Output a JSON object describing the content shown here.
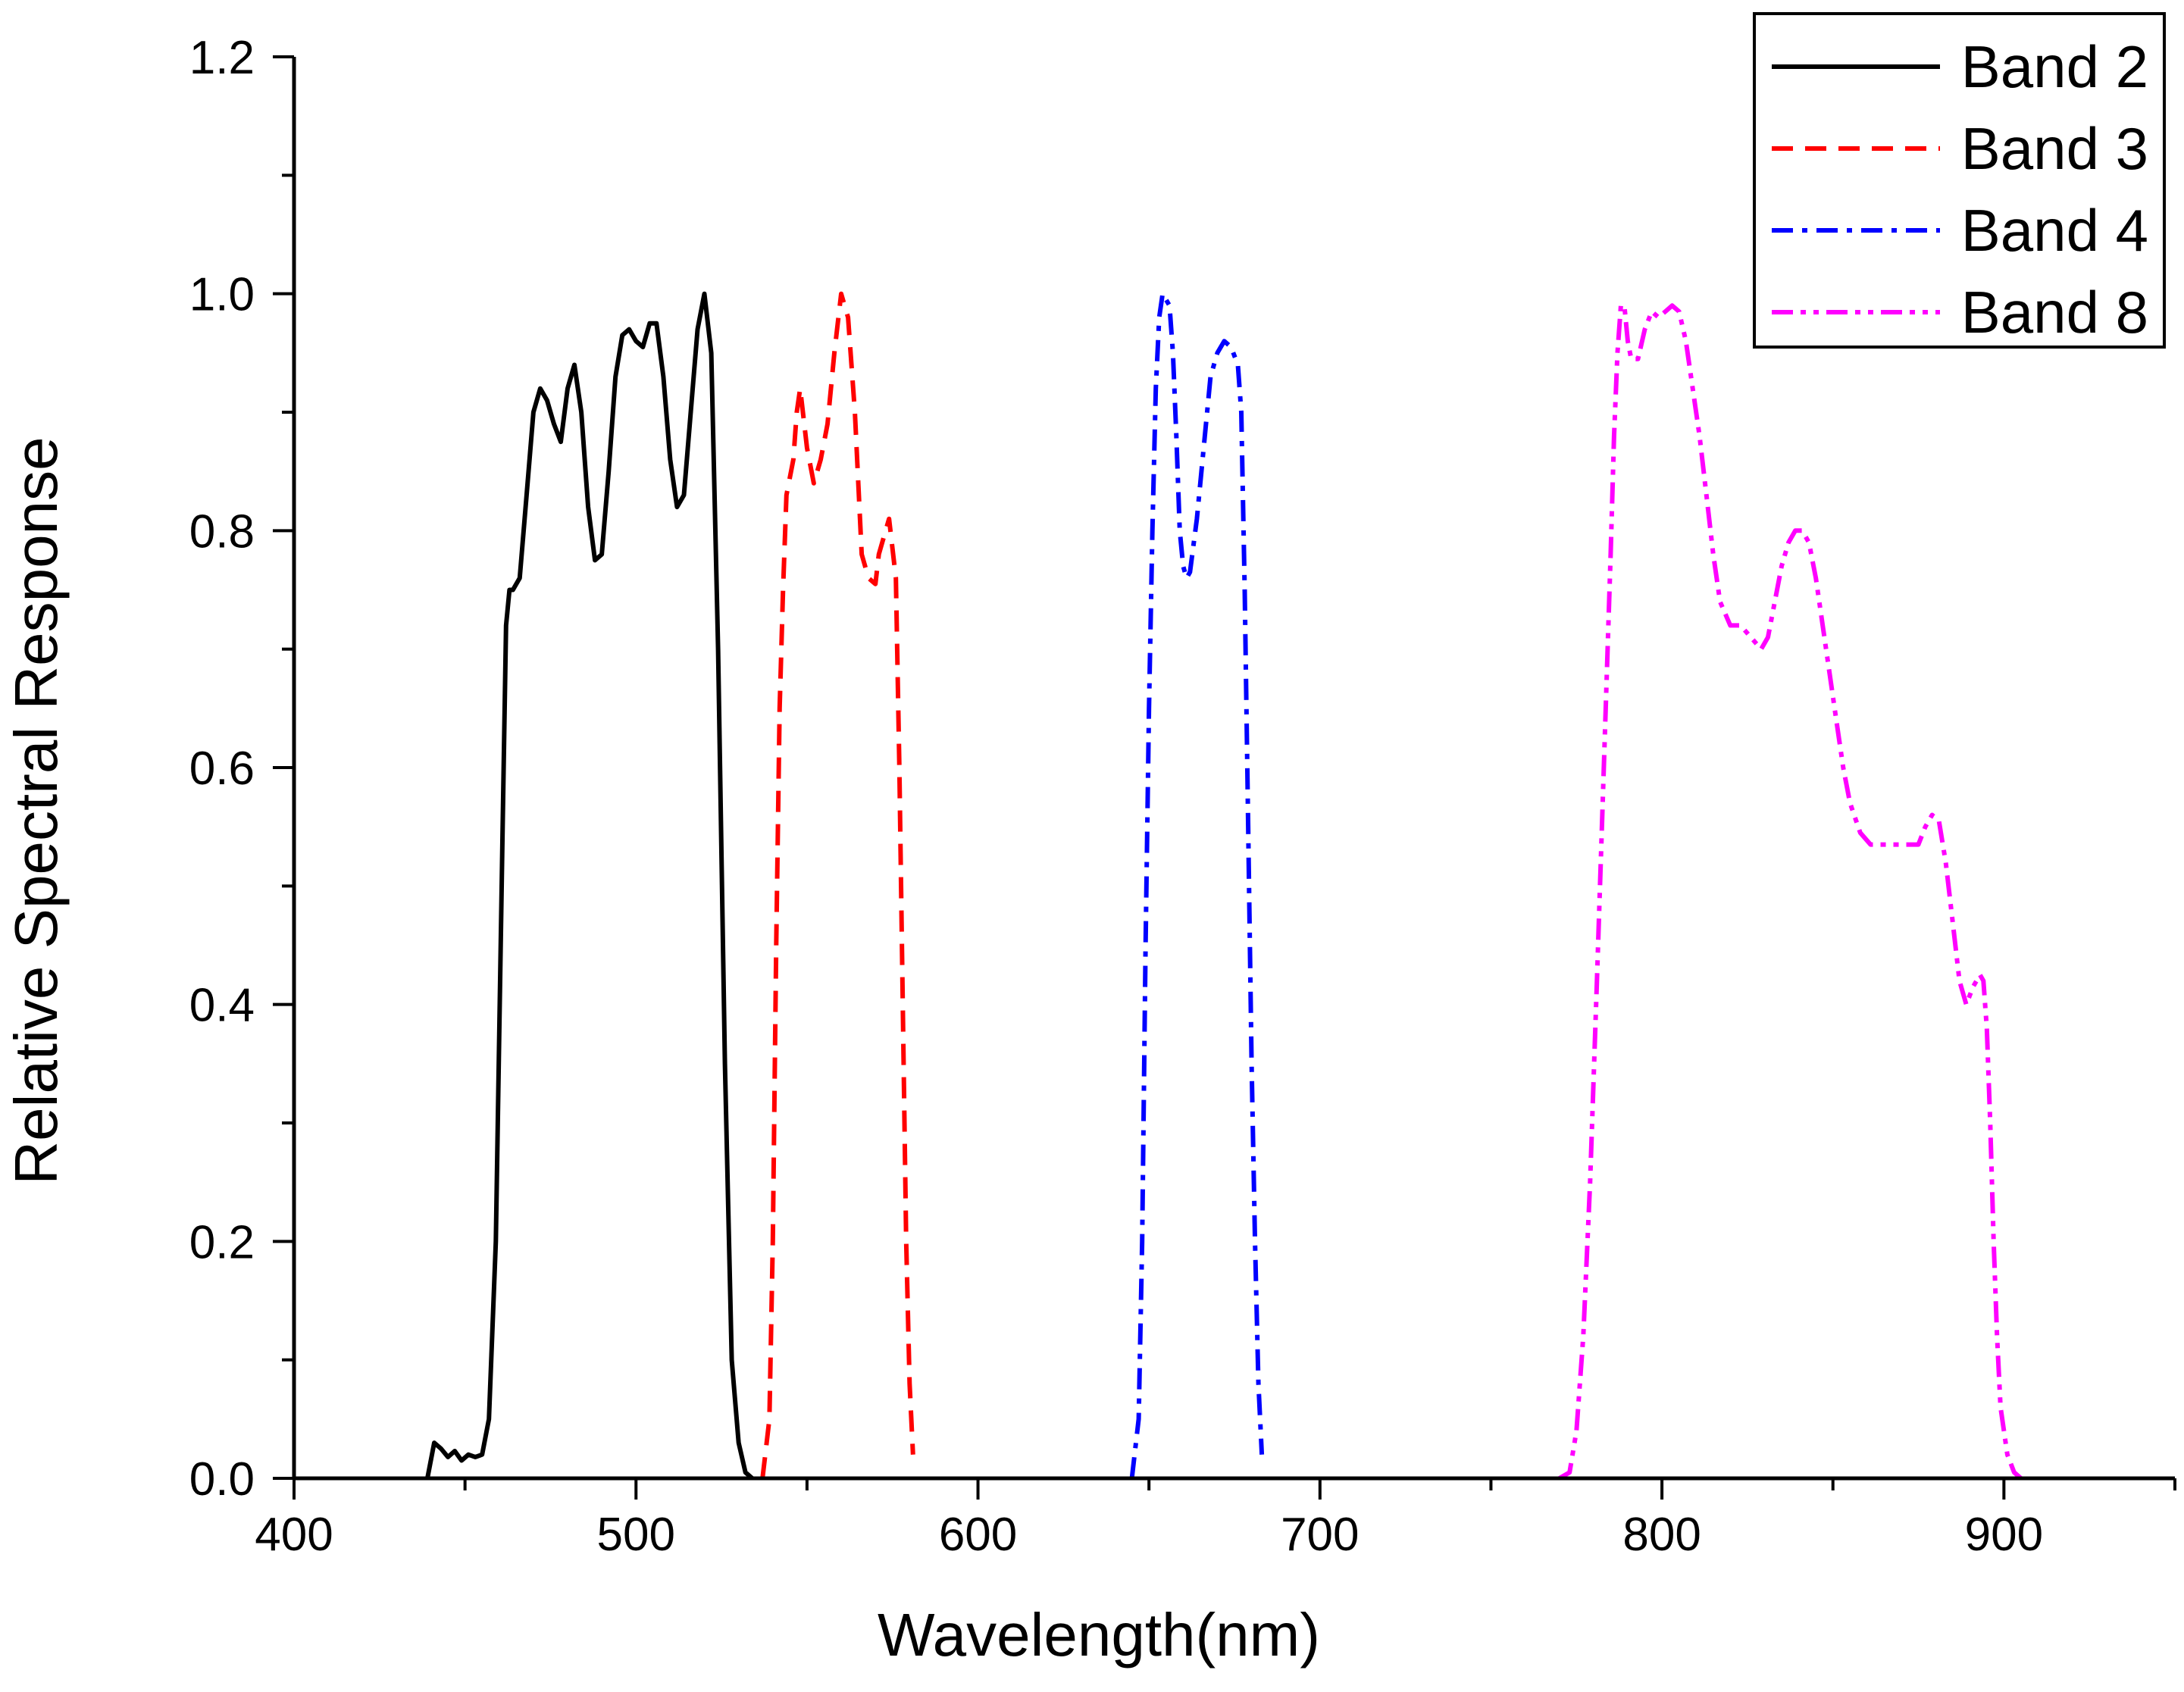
{
  "chart_data": {
    "type": "line",
    "title": "",
    "xlabel": "Wavelength(nm)",
    "ylabel": "Relative Spectral Response",
    "xlim": [
      400,
      950
    ],
    "ylim": [
      0,
      1.2
    ],
    "xticks": [
      400,
      500,
      600,
      700,
      800,
      900
    ],
    "xtick_labels": [
      "400",
      "500",
      "600",
      "700",
      "800",
      "900"
    ],
    "yticks": [
      0,
      0.2,
      0.4,
      0.6,
      0.8,
      1.0,
      1.2
    ],
    "ytick_labels": [
      "0.0",
      "0.2",
      "0.4",
      "0.6",
      "0.8",
      "1.0",
      "1.2"
    ],
    "legend_position": "top-right",
    "series": [
      {
        "name": "Band 2",
        "color": "#000000",
        "style": "solid",
        "points": [
          [
            439,
            0
          ],
          [
            441,
            0.03
          ],
          [
            443,
            0.025
          ],
          [
            445,
            0.018
          ],
          [
            447,
            0.023
          ],
          [
            449,
            0.015
          ],
          [
            451,
            0.02
          ],
          [
            453,
            0.018
          ],
          [
            455,
            0.02
          ],
          [
            457,
            0.05
          ],
          [
            459,
            0.2
          ],
          [
            461,
            0.55
          ],
          [
            462,
            0.72
          ],
          [
            463,
            0.75
          ],
          [
            464,
            0.75
          ],
          [
            466,
            0.76
          ],
          [
            468,
            0.83
          ],
          [
            470,
            0.9
          ],
          [
            472,
            0.92
          ],
          [
            474,
            0.91
          ],
          [
            476,
            0.89
          ],
          [
            478,
            0.875
          ],
          [
            480,
            0.92
          ],
          [
            482,
            0.94
          ],
          [
            484,
            0.9
          ],
          [
            486,
            0.82
          ],
          [
            488,
            0.775
          ],
          [
            490,
            0.78
          ],
          [
            492,
            0.85
          ],
          [
            494,
            0.93
          ],
          [
            496,
            0.965
          ],
          [
            498,
            0.97
          ],
          [
            500,
            0.96
          ],
          [
            502,
            0.955
          ],
          [
            504,
            0.975
          ],
          [
            506,
            0.975
          ],
          [
            508,
            0.93
          ],
          [
            510,
            0.86
          ],
          [
            512,
            0.82
          ],
          [
            514,
            0.83
          ],
          [
            516,
            0.9
          ],
          [
            518,
            0.97
          ],
          [
            520,
            1.0
          ],
          [
            522,
            0.95
          ],
          [
            524,
            0.7
          ],
          [
            526,
            0.35
          ],
          [
            528,
            0.1
          ],
          [
            530,
            0.03
          ],
          [
            532,
            0.005
          ],
          [
            534,
            0
          ]
        ]
      },
      {
        "name": "Band 3",
        "color": "#ff0000",
        "style": "dashed",
        "points": [
          [
            537,
            0
          ],
          [
            539,
            0.05
          ],
          [
            540,
            0.2
          ],
          [
            541,
            0.45
          ],
          [
            542,
            0.65
          ],
          [
            543,
            0.75
          ],
          [
            544,
            0.83
          ],
          [
            546,
            0.86
          ],
          [
            547,
            0.9
          ],
          [
            548,
            0.92
          ],
          [
            550,
            0.87
          ],
          [
            552,
            0.84
          ],
          [
            554,
            0.86
          ],
          [
            556,
            0.89
          ],
          [
            558,
            0.95
          ],
          [
            560,
            1.0
          ],
          [
            562,
            0.98
          ],
          [
            564,
            0.9
          ],
          [
            566,
            0.78
          ],
          [
            568,
            0.76
          ],
          [
            570,
            0.755
          ],
          [
            571,
            0.78
          ],
          [
            573,
            0.8
          ],
          [
            574,
            0.81
          ],
          [
            576,
            0.76
          ],
          [
            577,
            0.6
          ],
          [
            578,
            0.4
          ],
          [
            579,
            0.2
          ],
          [
            580,
            0.08
          ],
          [
            581,
            0.02
          ]
        ]
      },
      {
        "name": "Band 4",
        "color": "#0000ff",
        "style": "dashdot",
        "points": [
          [
            645,
            0
          ],
          [
            647,
            0.05
          ],
          [
            648,
            0.2
          ],
          [
            649,
            0.45
          ],
          [
            650,
            0.65
          ],
          [
            651,
            0.8
          ],
          [
            652,
            0.92
          ],
          [
            653,
            0.98
          ],
          [
            654,
            1.0
          ],
          [
            656,
            0.99
          ],
          [
            657,
            0.95
          ],
          [
            658,
            0.88
          ],
          [
            659,
            0.8
          ],
          [
            660,
            0.77
          ],
          [
            661,
            0.76
          ],
          [
            662,
            0.765
          ],
          [
            664,
            0.81
          ],
          [
            666,
            0.87
          ],
          [
            668,
            0.93
          ],
          [
            670,
            0.95
          ],
          [
            672,
            0.96
          ],
          [
            674,
            0.955
          ],
          [
            676,
            0.94
          ],
          [
            677,
            0.9
          ],
          [
            678,
            0.75
          ],
          [
            679,
            0.55
          ],
          [
            680,
            0.35
          ],
          [
            681,
            0.2
          ],
          [
            682,
            0.08
          ],
          [
            683,
            0.02
          ]
        ]
      },
      {
        "name": "Band 8",
        "color": "#ff00ff",
        "style": "dashdotdot",
        "points": [
          [
            770,
            0
          ],
          [
            773,
            0.005
          ],
          [
            775,
            0.04
          ],
          [
            777,
            0.12
          ],
          [
            779,
            0.25
          ],
          [
            781,
            0.42
          ],
          [
            783,
            0.6
          ],
          [
            785,
            0.78
          ],
          [
            786,
            0.88
          ],
          [
            787,
            0.95
          ],
          [
            788,
            0.99
          ],
          [
            789,
            0.99
          ],
          [
            790,
            0.96
          ],
          [
            791,
            0.945
          ],
          [
            793,
            0.945
          ],
          [
            795,
            0.97
          ],
          [
            797,
            0.985
          ],
          [
            799,
            0.98
          ],
          [
            801,
            0.985
          ],
          [
            803,
            0.99
          ],
          [
            805,
            0.985
          ],
          [
            807,
            0.96
          ],
          [
            809,
            0.92
          ],
          [
            811,
            0.88
          ],
          [
            813,
            0.83
          ],
          [
            815,
            0.78
          ],
          [
            817,
            0.74
          ],
          [
            820,
            0.72
          ],
          [
            823,
            0.72
          ],
          [
            826,
            0.71
          ],
          [
            829,
            0.7
          ],
          [
            831,
            0.71
          ],
          [
            833,
            0.74
          ],
          [
            835,
            0.77
          ],
          [
            837,
            0.79
          ],
          [
            839,
            0.8
          ],
          [
            841,
            0.8
          ],
          [
            843,
            0.79
          ],
          [
            845,
            0.76
          ],
          [
            847,
            0.72
          ],
          [
            849,
            0.68
          ],
          [
            851,
            0.64
          ],
          [
            853,
            0.6
          ],
          [
            855,
            0.57
          ],
          [
            858,
            0.545
          ],
          [
            861,
            0.535
          ],
          [
            865,
            0.535
          ],
          [
            869,
            0.535
          ],
          [
            872,
            0.535
          ],
          [
            875,
            0.535
          ],
          [
            877,
            0.55
          ],
          [
            879,
            0.56
          ],
          [
            881,
            0.555
          ],
          [
            883,
            0.52
          ],
          [
            885,
            0.47
          ],
          [
            887,
            0.42
          ],
          [
            889,
            0.4
          ],
          [
            891,
            0.415
          ],
          [
            893,
            0.425
          ],
          [
            894,
            0.42
          ],
          [
            895,
            0.38
          ],
          [
            896,
            0.3
          ],
          [
            897,
            0.2
          ],
          [
            898,
            0.12
          ],
          [
            899,
            0.06
          ],
          [
            901,
            0.02
          ],
          [
            903,
            0.005
          ],
          [
            905,
            0
          ]
        ]
      }
    ]
  }
}
